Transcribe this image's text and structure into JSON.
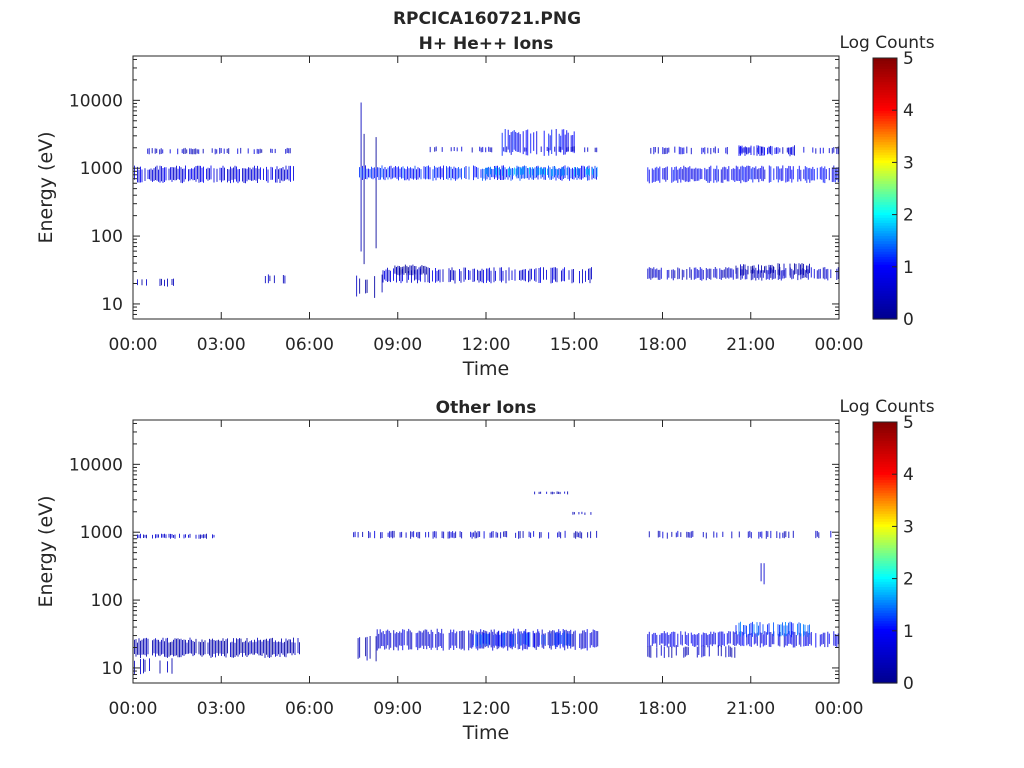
{
  "figure": {
    "title": "RPCICA160721.PNG"
  },
  "colormap": {
    "stops": [
      "#00008f",
      "#0000ff",
      "#00ffff",
      "#ffff00",
      "#ff0000",
      "#800000"
    ]
  },
  "chart_data": [
    {
      "type": "heatmap",
      "title": "H+ He++ Ions",
      "xlabel": "Time",
      "ylabel": "Energy (eV)",
      "x_ticks": [
        "00:00",
        "03:00",
        "06:00",
        "09:00",
        "12:00",
        "15:00",
        "18:00",
        "21:00",
        "00:00"
      ],
      "xlim_hours": [
        0,
        24
      ],
      "y_scale": "log",
      "ylim": [
        6,
        45000
      ],
      "y_ticks": [
        10,
        100,
        1000,
        10000
      ],
      "y_tick_labels": [
        "10",
        "100",
        "1000",
        "10000"
      ],
      "colorbar": {
        "label": "Log Counts",
        "min": 0,
        "max": 5,
        "ticks": [
          "0",
          "1",
          "2",
          "3",
          "4",
          "5"
        ]
      },
      "bands": [
        {
          "t": [
            0.0,
            5.5
          ],
          "e": [
            600,
            1100
          ],
          "level": 0.7,
          "density": 0.85
        },
        {
          "t": [
            0.5,
            5.5
          ],
          "e": [
            1600,
            2000
          ],
          "level": 0.5,
          "density": 0.45
        },
        {
          "t": [
            0.0,
            1.5
          ],
          "e": [
            18,
            24
          ],
          "level": 0.4,
          "density": 0.3
        },
        {
          "t": [
            4.5,
            5.5
          ],
          "e": [
            20,
            28
          ],
          "level": 0.4,
          "density": 0.2
        },
        {
          "t": [
            7.5,
            8.5
          ],
          "e": [
            20,
            12000
          ],
          "level": 0.3,
          "density": 0.12
        },
        {
          "t": [
            7.7,
            15.8
          ],
          "e": [
            650,
            1100
          ],
          "level": 1.1,
          "density": 0.9
        },
        {
          "t": [
            12.0,
            15.8
          ],
          "e": [
            750,
            1050
          ],
          "level": 1.7,
          "density": 0.6
        },
        {
          "t": [
            12.5,
            15.0
          ],
          "e": [
            1500,
            3800
          ],
          "level": 0.9,
          "density": 0.55
        },
        {
          "t": [
            10.0,
            15.8
          ],
          "e": [
            1700,
            2100
          ],
          "level": 0.5,
          "density": 0.35
        },
        {
          "t": [
            8.5,
            15.8
          ],
          "e": [
            20,
            35
          ],
          "level": 0.6,
          "density": 0.6
        },
        {
          "t": [
            8.8,
            10.0
          ],
          "e": [
            26,
            38
          ],
          "level": 0.2,
          "density": 0.85
        },
        {
          "t": [
            7.5,
            8.6
          ],
          "e": [
            12,
            28
          ],
          "level": 0.3,
          "density": 0.3
        },
        {
          "t": [
            17.5,
            17.8
          ],
          "e": [
            20,
            10000
          ],
          "level": 0.3,
          "density": 0.12
        },
        {
          "t": [
            17.5,
            24.0
          ],
          "e": [
            600,
            1100
          ],
          "level": 0.9,
          "density": 0.85
        },
        {
          "t": [
            17.5,
            24.0
          ],
          "e": [
            1600,
            2100
          ],
          "level": 0.6,
          "density": 0.4
        },
        {
          "t": [
            20.5,
            22.5
          ],
          "e": [
            1500,
            2200
          ],
          "level": 0.8,
          "density": 0.6
        },
        {
          "t": [
            17.5,
            24.0
          ],
          "e": [
            22,
            35
          ],
          "level": 0.5,
          "density": 0.7
        },
        {
          "t": [
            20.5,
            23.0
          ],
          "e": [
            26,
            40
          ],
          "level": 0.3,
          "density": 0.6
        }
      ]
    },
    {
      "type": "heatmap",
      "title": "Other Ions",
      "xlabel": "Time",
      "ylabel": "Energy (eV)",
      "x_ticks": [
        "00:00",
        "03:00",
        "06:00",
        "09:00",
        "12:00",
        "15:00",
        "18:00",
        "21:00",
        "00:00"
      ],
      "xlim_hours": [
        0,
        24
      ],
      "y_scale": "log",
      "ylim": [
        6,
        45000
      ],
      "y_ticks": [
        10,
        100,
        1000,
        10000
      ],
      "y_tick_labels": [
        "10",
        "100",
        "1000",
        "10000"
      ],
      "colorbar": {
        "label": "Log Counts",
        "min": 0,
        "max": 5,
        "ticks": [
          "0",
          "1",
          "2",
          "3",
          "4",
          "5"
        ]
      },
      "bands": [
        {
          "t": [
            0.0,
            5.7
          ],
          "e": [
            14,
            28
          ],
          "level": 0.3,
          "density": 0.9
        },
        {
          "t": [
            0.0,
            1.5
          ],
          "e": [
            8,
            14
          ],
          "level": 0.4,
          "density": 0.25
        },
        {
          "t": [
            0.0,
            2.8
          ],
          "e": [
            800,
            950
          ],
          "level": 0.5,
          "density": 0.45
        },
        {
          "t": [
            7.5,
            8.3
          ],
          "e": [
            12,
            30
          ],
          "level": 0.3,
          "density": 0.5
        },
        {
          "t": [
            8.3,
            15.8
          ],
          "e": [
            18,
            38
          ],
          "level": 0.6,
          "density": 0.85
        },
        {
          "t": [
            11.5,
            15.0
          ],
          "e": [
            20,
            35
          ],
          "level": 1.2,
          "density": 0.6
        },
        {
          "t": [
            7.5,
            15.8
          ],
          "e": [
            800,
            1050
          ],
          "level": 0.5,
          "density": 0.5
        },
        {
          "t": [
            13.5,
            14.8
          ],
          "e": [
            3600,
            4000
          ],
          "level": 0.4,
          "density": 0.4
        },
        {
          "t": [
            14.8,
            15.6
          ],
          "e": [
            1800,
            2000
          ],
          "level": 0.5,
          "density": 0.5
        },
        {
          "t": [
            17.5,
            24.0
          ],
          "e": [
            20,
            35
          ],
          "level": 0.8,
          "density": 0.85
        },
        {
          "t": [
            17.5,
            20.5
          ],
          "e": [
            14,
            22
          ],
          "level": 0.4,
          "density": 0.5
        },
        {
          "t": [
            20.5,
            23.0
          ],
          "e": [
            28,
            48
          ],
          "level": 1.3,
          "density": 0.65
        },
        {
          "t": [
            17.5,
            24.0
          ],
          "e": [
            800,
            1050
          ],
          "level": 0.5,
          "density": 0.4
        },
        {
          "t": [
            21.2,
            21.5
          ],
          "e": [
            150,
            450
          ],
          "level": 0.4,
          "density": 0.25
        }
      ]
    }
  ]
}
